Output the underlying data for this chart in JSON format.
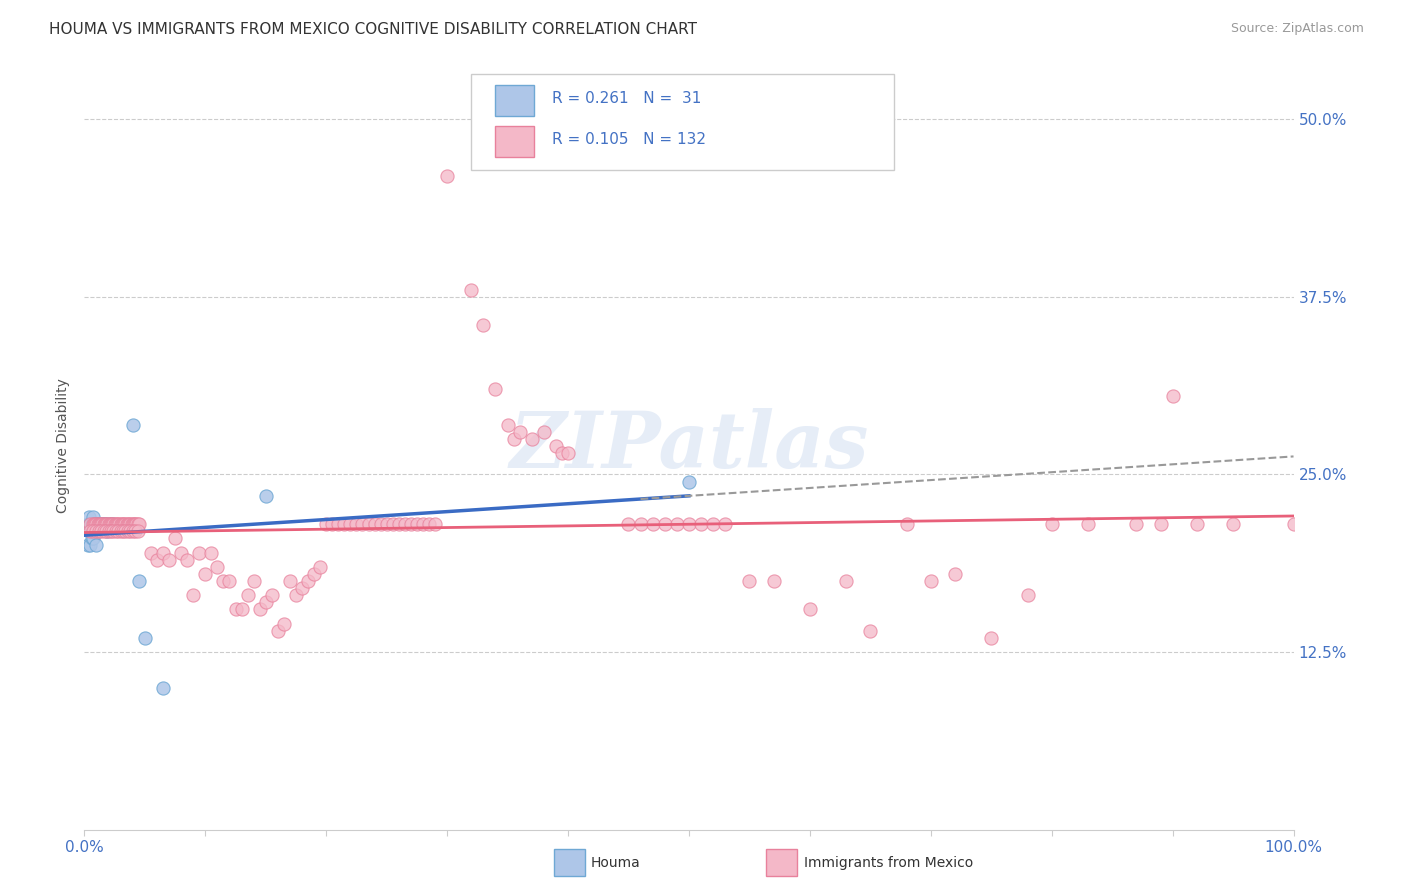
{
  "title": "HOUMA VS IMMIGRANTS FROM MEXICO COGNITIVE DISABILITY CORRELATION CHART",
  "source": "Source: ZipAtlas.com",
  "ylabel": "Cognitive Disability",
  "watermark": "ZIPatlas",
  "xlim": [
    0.0,
    1.0
  ],
  "ylim": [
    0.0,
    0.54
  ],
  "ytick_labels": [
    "12.5%",
    "25.0%",
    "37.5%",
    "50.0%"
  ],
  "ytick_values": [
    0.125,
    0.25,
    0.375,
    0.5
  ],
  "houma_color": "#aec6e8",
  "houma_edge": "#6fa8d4",
  "mexico_color": "#f4b8c8",
  "mexico_edge": "#e8819c",
  "houma_line_color": "#3a6bc4",
  "mexico_line_color": "#e8607a",
  "legend_text_color": "#4472c4",
  "tick_color": "#4472c4",
  "houma_scatter": [
    [
      0.003,
      0.215
    ],
    [
      0.004,
      0.22
    ],
    [
      0.005,
      0.215
    ],
    [
      0.006,
      0.215
    ],
    [
      0.007,
      0.22
    ],
    [
      0.008,
      0.215
    ],
    [
      0.009,
      0.21
    ],
    [
      0.01,
      0.215
    ],
    [
      0.011,
      0.215
    ],
    [
      0.012,
      0.215
    ],
    [
      0.013,
      0.215
    ],
    [
      0.014,
      0.215
    ],
    [
      0.015,
      0.215
    ],
    [
      0.016,
      0.215
    ],
    [
      0.017,
      0.215
    ],
    [
      0.018,
      0.215
    ],
    [
      0.019,
      0.21
    ],
    [
      0.02,
      0.215
    ],
    [
      0.022,
      0.215
    ],
    [
      0.024,
      0.215
    ],
    [
      0.003,
      0.2
    ],
    [
      0.005,
      0.2
    ],
    [
      0.006,
      0.205
    ],
    [
      0.007,
      0.205
    ],
    [
      0.01,
      0.2
    ],
    [
      0.04,
      0.285
    ],
    [
      0.045,
      0.175
    ],
    [
      0.05,
      0.135
    ],
    [
      0.065,
      0.1
    ],
    [
      0.15,
      0.235
    ],
    [
      0.5,
      0.245
    ]
  ],
  "mexico_scatter": [
    [
      0.005,
      0.215
    ],
    [
      0.007,
      0.215
    ],
    [
      0.008,
      0.215
    ],
    [
      0.009,
      0.215
    ],
    [
      0.01,
      0.215
    ],
    [
      0.011,
      0.215
    ],
    [
      0.012,
      0.215
    ],
    [
      0.013,
      0.215
    ],
    [
      0.014,
      0.215
    ],
    [
      0.015,
      0.215
    ],
    [
      0.016,
      0.215
    ],
    [
      0.017,
      0.215
    ],
    [
      0.018,
      0.215
    ],
    [
      0.019,
      0.215
    ],
    [
      0.02,
      0.215
    ],
    [
      0.021,
      0.215
    ],
    [
      0.022,
      0.215
    ],
    [
      0.023,
      0.215
    ],
    [
      0.024,
      0.215
    ],
    [
      0.025,
      0.215
    ],
    [
      0.026,
      0.215
    ],
    [
      0.027,
      0.215
    ],
    [
      0.028,
      0.215
    ],
    [
      0.029,
      0.215
    ],
    [
      0.03,
      0.215
    ],
    [
      0.031,
      0.215
    ],
    [
      0.032,
      0.215
    ],
    [
      0.033,
      0.215
    ],
    [
      0.034,
      0.215
    ],
    [
      0.035,
      0.215
    ],
    [
      0.036,
      0.215
    ],
    [
      0.037,
      0.215
    ],
    [
      0.038,
      0.215
    ],
    [
      0.039,
      0.215
    ],
    [
      0.04,
      0.215
    ],
    [
      0.041,
      0.215
    ],
    [
      0.042,
      0.215
    ],
    [
      0.043,
      0.215
    ],
    [
      0.044,
      0.215
    ],
    [
      0.045,
      0.215
    ],
    [
      0.005,
      0.21
    ],
    [
      0.007,
      0.21
    ],
    [
      0.01,
      0.21
    ],
    [
      0.012,
      0.21
    ],
    [
      0.014,
      0.21
    ],
    [
      0.016,
      0.21
    ],
    [
      0.018,
      0.21
    ],
    [
      0.02,
      0.21
    ],
    [
      0.022,
      0.21
    ],
    [
      0.024,
      0.21
    ],
    [
      0.026,
      0.21
    ],
    [
      0.028,
      0.21
    ],
    [
      0.03,
      0.21
    ],
    [
      0.032,
      0.21
    ],
    [
      0.034,
      0.21
    ],
    [
      0.036,
      0.21
    ],
    [
      0.038,
      0.21
    ],
    [
      0.04,
      0.21
    ],
    [
      0.042,
      0.21
    ],
    [
      0.044,
      0.21
    ],
    [
      0.055,
      0.195
    ],
    [
      0.06,
      0.19
    ],
    [
      0.065,
      0.195
    ],
    [
      0.07,
      0.19
    ],
    [
      0.075,
      0.205
    ],
    [
      0.08,
      0.195
    ],
    [
      0.085,
      0.19
    ],
    [
      0.09,
      0.165
    ],
    [
      0.095,
      0.195
    ],
    [
      0.1,
      0.18
    ],
    [
      0.105,
      0.195
    ],
    [
      0.11,
      0.185
    ],
    [
      0.115,
      0.175
    ],
    [
      0.12,
      0.175
    ],
    [
      0.125,
      0.155
    ],
    [
      0.13,
      0.155
    ],
    [
      0.135,
      0.165
    ],
    [
      0.14,
      0.175
    ],
    [
      0.145,
      0.155
    ],
    [
      0.15,
      0.16
    ],
    [
      0.155,
      0.165
    ],
    [
      0.16,
      0.14
    ],
    [
      0.165,
      0.145
    ],
    [
      0.17,
      0.175
    ],
    [
      0.175,
      0.165
    ],
    [
      0.18,
      0.17
    ],
    [
      0.185,
      0.175
    ],
    [
      0.19,
      0.18
    ],
    [
      0.195,
      0.185
    ],
    [
      0.2,
      0.215
    ],
    [
      0.205,
      0.215
    ],
    [
      0.21,
      0.215
    ],
    [
      0.215,
      0.215
    ],
    [
      0.22,
      0.215
    ],
    [
      0.225,
      0.215
    ],
    [
      0.23,
      0.215
    ],
    [
      0.235,
      0.215
    ],
    [
      0.24,
      0.215
    ],
    [
      0.245,
      0.215
    ],
    [
      0.25,
      0.215
    ],
    [
      0.255,
      0.215
    ],
    [
      0.26,
      0.215
    ],
    [
      0.265,
      0.215
    ],
    [
      0.27,
      0.215
    ],
    [
      0.275,
      0.215
    ],
    [
      0.28,
      0.215
    ],
    [
      0.285,
      0.215
    ],
    [
      0.29,
      0.215
    ],
    [
      0.3,
      0.46
    ],
    [
      0.32,
      0.38
    ],
    [
      0.33,
      0.355
    ],
    [
      0.34,
      0.31
    ],
    [
      0.35,
      0.285
    ],
    [
      0.355,
      0.275
    ],
    [
      0.36,
      0.28
    ],
    [
      0.37,
      0.275
    ],
    [
      0.38,
      0.28
    ],
    [
      0.39,
      0.27
    ],
    [
      0.395,
      0.265
    ],
    [
      0.4,
      0.265
    ],
    [
      0.45,
      0.215
    ],
    [
      0.46,
      0.215
    ],
    [
      0.47,
      0.215
    ],
    [
      0.48,
      0.215
    ],
    [
      0.49,
      0.215
    ],
    [
      0.5,
      0.215
    ],
    [
      0.51,
      0.215
    ],
    [
      0.52,
      0.215
    ],
    [
      0.53,
      0.215
    ],
    [
      0.55,
      0.175
    ],
    [
      0.57,
      0.175
    ],
    [
      0.6,
      0.155
    ],
    [
      0.63,
      0.175
    ],
    [
      0.65,
      0.14
    ],
    [
      0.68,
      0.215
    ],
    [
      0.7,
      0.175
    ],
    [
      0.72,
      0.18
    ],
    [
      0.75,
      0.135
    ],
    [
      0.78,
      0.165
    ],
    [
      0.8,
      0.215
    ],
    [
      0.83,
      0.215
    ],
    [
      0.87,
      0.215
    ],
    [
      0.89,
      0.215
    ],
    [
      0.9,
      0.305
    ],
    [
      0.92,
      0.215
    ],
    [
      0.95,
      0.215
    ],
    [
      1.0,
      0.215
    ]
  ],
  "dashed_line": [
    [
      0.46,
      0.26
    ],
    [
      1.0,
      0.315
    ]
  ]
}
